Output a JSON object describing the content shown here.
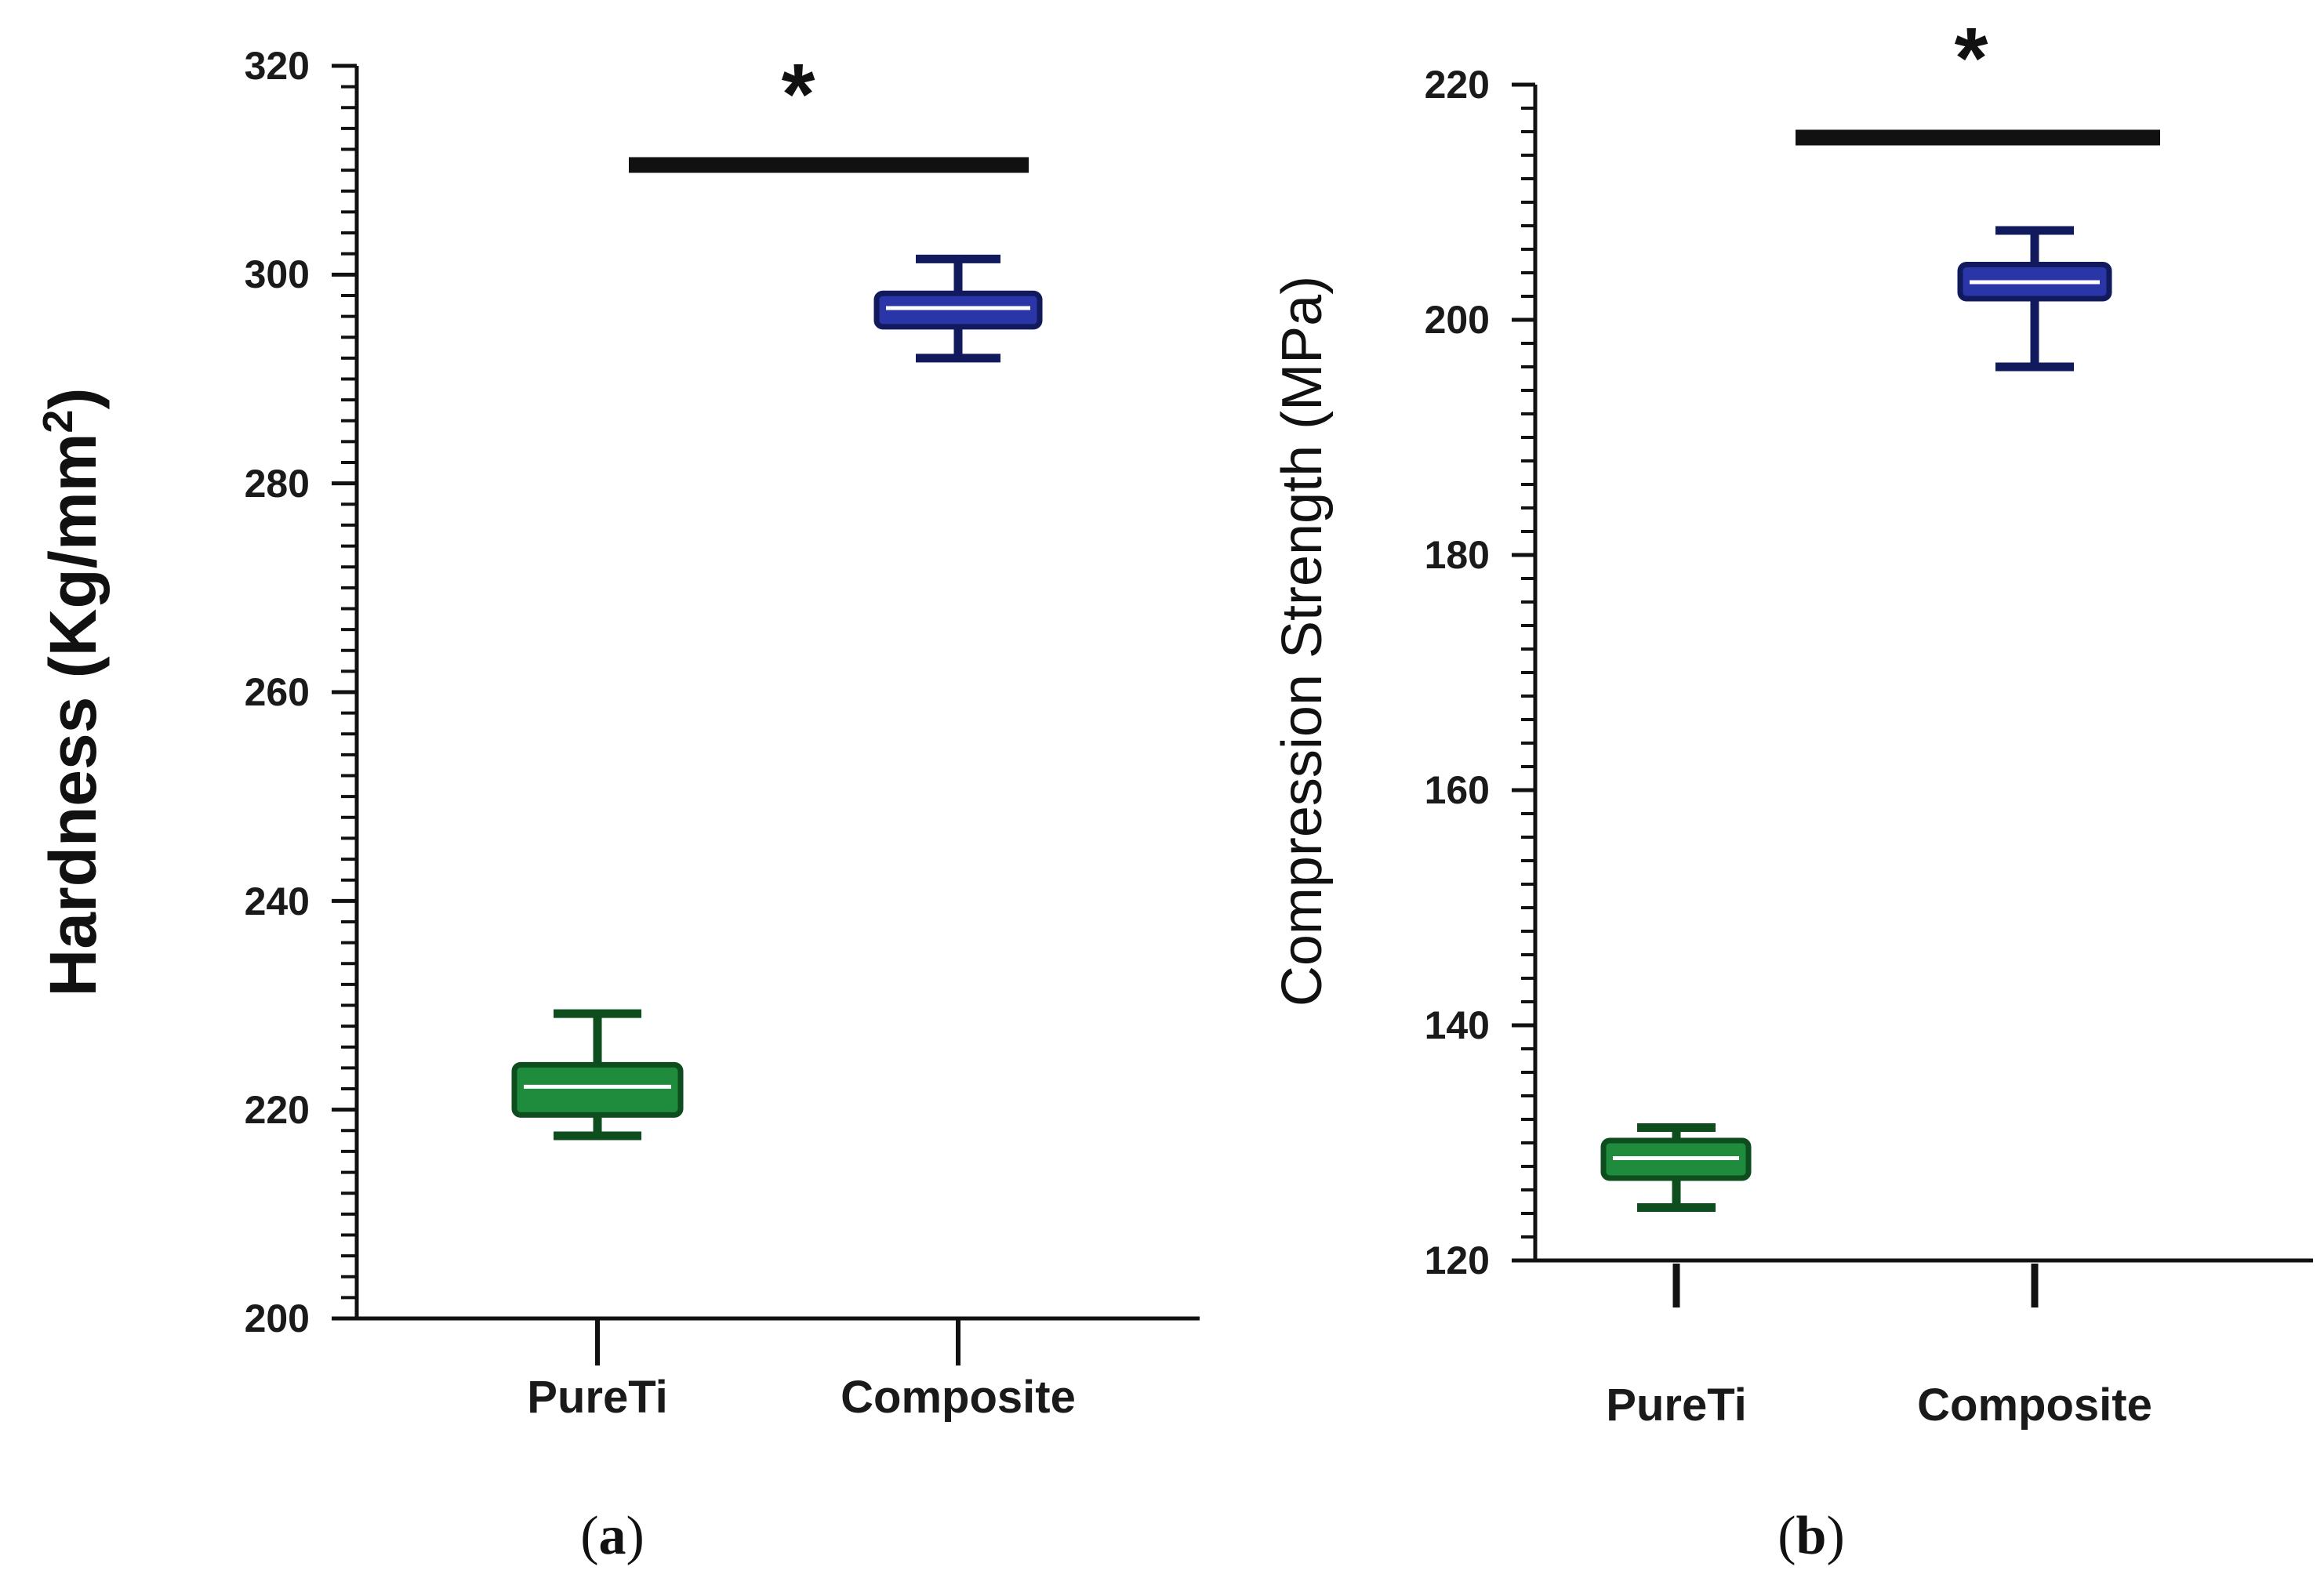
{
  "chart_data": [
    {
      "panel_label_open": "(",
      "panel_letter": "a",
      "panel_label_close": ")",
      "type": "box",
      "ylabel_main": "Hardness (Kg/mm",
      "ylabel_sup": "2",
      "ylabel_close": ")",
      "ylim": [
        200,
        320
      ],
      "y_ticks": [
        "200",
        "220",
        "240",
        "260",
        "280",
        "300",
        "320"
      ],
      "y_tick_values": [
        200,
        220,
        240,
        260,
        280,
        300,
        320
      ],
      "y_minor_step": 2,
      "categories": [
        "PureTi",
        "Composite"
      ],
      "series": [
        {
          "category": "PureTi",
          "min": 217.5,
          "q1": 219.5,
          "median": 222.2,
          "q3": 224.3,
          "max": 229.2,
          "color": "#1e8c3c",
          "edge": "#0e4d1e"
        },
        {
          "category": "Composite",
          "min": 292.0,
          "q1": 295.0,
          "median": 296.8,
          "q3": 298.2,
          "max": 301.5,
          "color": "#2a35a8",
          "edge": "#101a5c"
        }
      ],
      "significance": {
        "y": 310.5,
        "marker": "*"
      }
    },
    {
      "panel_label_open": "(",
      "panel_letter": "b",
      "panel_label_close": ")",
      "type": "box",
      "ylabel_main": "Compression Strength (MPa)",
      "ylim": [
        120,
        220
      ],
      "y_ticks": [
        "120",
        "140",
        "160",
        "180",
        "200",
        "220"
      ],
      "y_tick_values": [
        120,
        140,
        160,
        180,
        200,
        220
      ],
      "y_minor_step": 2,
      "categories": [
        "PureTi",
        "Composite"
      ],
      "series": [
        {
          "category": "PureTi",
          "min": 124.5,
          "q1": 127.0,
          "median": 128.7,
          "q3": 130.2,
          "max": 131.3,
          "color": "#1e8c3c",
          "edge": "#0e4d1e"
        },
        {
          "category": "Composite",
          "min": 196.0,
          "q1": 201.8,
          "median": 203.2,
          "q3": 204.7,
          "max": 207.6,
          "color": "#2a35a8",
          "edge": "#101a5c"
        }
      ],
      "significance": {
        "y": 215.5,
        "marker": "*"
      }
    }
  ]
}
